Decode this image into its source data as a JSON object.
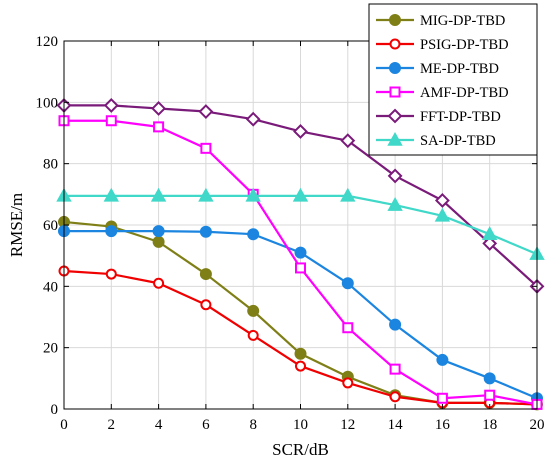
{
  "chart_data": {
    "type": "line",
    "xlabel": "SCR/dB",
    "ylabel": "RMSE/m",
    "xlim": [
      0,
      20
    ],
    "ylim": [
      0,
      120
    ],
    "xticks": [
      0,
      2,
      4,
      6,
      8,
      10,
      12,
      14,
      16,
      18,
      20
    ],
    "yticks": [
      0,
      20,
      40,
      60,
      80,
      100,
      120
    ],
    "grid": true,
    "legend_position": "top-right",
    "x": [
      0,
      2,
      4,
      6,
      8,
      10,
      12,
      14,
      16,
      18,
      20
    ],
    "series": [
      {
        "name": "MIG-DP-TBD",
        "color": "#7f7f17",
        "marker": "circle-filled",
        "values": [
          61,
          59.5,
          54.5,
          44,
          32,
          18,
          10.5,
          4.5,
          2,
          2,
          1.5
        ]
      },
      {
        "name": "PSIG-DP-TBD",
        "color": "#f00000",
        "marker": "circle-open",
        "values": [
          45,
          44,
          41,
          34,
          24,
          14,
          8.5,
          4,
          2,
          2,
          1.5
        ]
      },
      {
        "name": "ME-DP-TBD",
        "color": "#1b85e0",
        "marker": "circle-filled",
        "values": [
          58,
          58,
          58,
          57.8,
          57,
          51,
          41,
          27.5,
          16,
          10,
          3.5
        ]
      },
      {
        "name": "AMF-DP-TBD",
        "color": "#ff00ff",
        "marker": "square-open",
        "values": [
          94,
          94,
          92,
          85,
          70,
          46,
          26.5,
          13,
          3.5,
          4.5,
          1.5
        ]
      },
      {
        "name": "FFT-DP-TBD",
        "color": "#7a1b7a",
        "marker": "diamond-open",
        "values": [
          99,
          99,
          98,
          97,
          94.5,
          90.5,
          87.5,
          76,
          68,
          54,
          40
        ]
      },
      {
        "name": "SA-DP-TBD",
        "color": "#40d8c8",
        "marker": "triangle-filled",
        "values": [
          69.5,
          69.5,
          69.5,
          69.5,
          69.5,
          69.5,
          69.5,
          66.5,
          63,
          57,
          50.5
        ]
      }
    ]
  }
}
